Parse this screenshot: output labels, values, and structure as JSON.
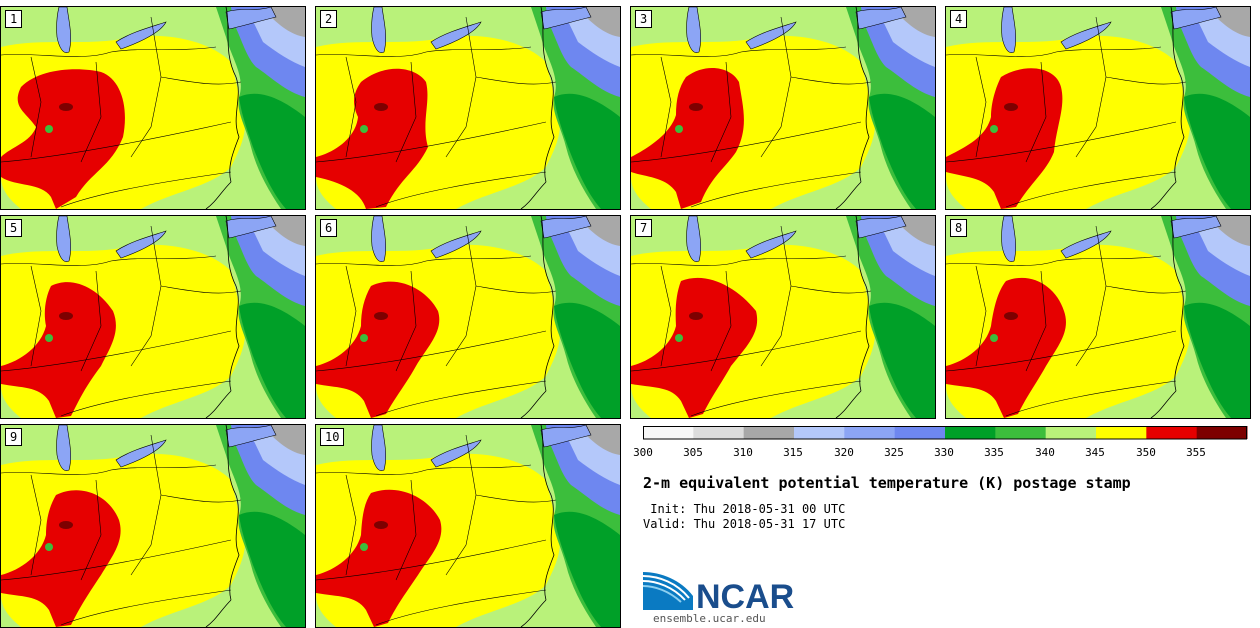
{
  "figure": {
    "title": "2-m equivalent potential temperature (K) postage stamp",
    "init_text": " Init: Thu 2018-05-31 00 UTC",
    "valid_text": "Valid: Thu 2018-05-31 17 UTC"
  },
  "members": [
    {
      "label": "1"
    },
    {
      "label": "2"
    },
    {
      "label": "3"
    },
    {
      "label": "4"
    },
    {
      "label": "5"
    },
    {
      "label": "6"
    },
    {
      "label": "7"
    },
    {
      "label": "8"
    },
    {
      "label": "9"
    },
    {
      "label": "10"
    }
  ],
  "colorbar": {
    "tick_labels": [
      "300",
      "305",
      "310",
      "315",
      "320",
      "325",
      "330",
      "335",
      "340",
      "345",
      "350",
      "355"
    ],
    "colors": [
      "#f7f7f7",
      "#dcdcdc",
      "#a8a8a8",
      "#b4c8fa",
      "#8ca5f5",
      "#6e87f0",
      "#00a028",
      "#3cbe3c",
      "#b9f27a",
      "#ffff00",
      "#e60000",
      "#7d0000"
    ]
  },
  "branding": {
    "logo_text": "NCAR",
    "url": "ensemble.ucar.edu"
  },
  "colors": {
    "land_cool": "#b9f27a",
    "land_warm": "#ffff00",
    "hot": "#e60000",
    "very_hot": "#7d0000",
    "ocean_green": "#3cbe3c",
    "ocean_dark": "#00a028",
    "lake": "#8ca5f5",
    "cold_blue": "#6e87f0",
    "cold_light": "#b4c8fa",
    "gray": "#a8a8a8",
    "border": "#000000"
  }
}
